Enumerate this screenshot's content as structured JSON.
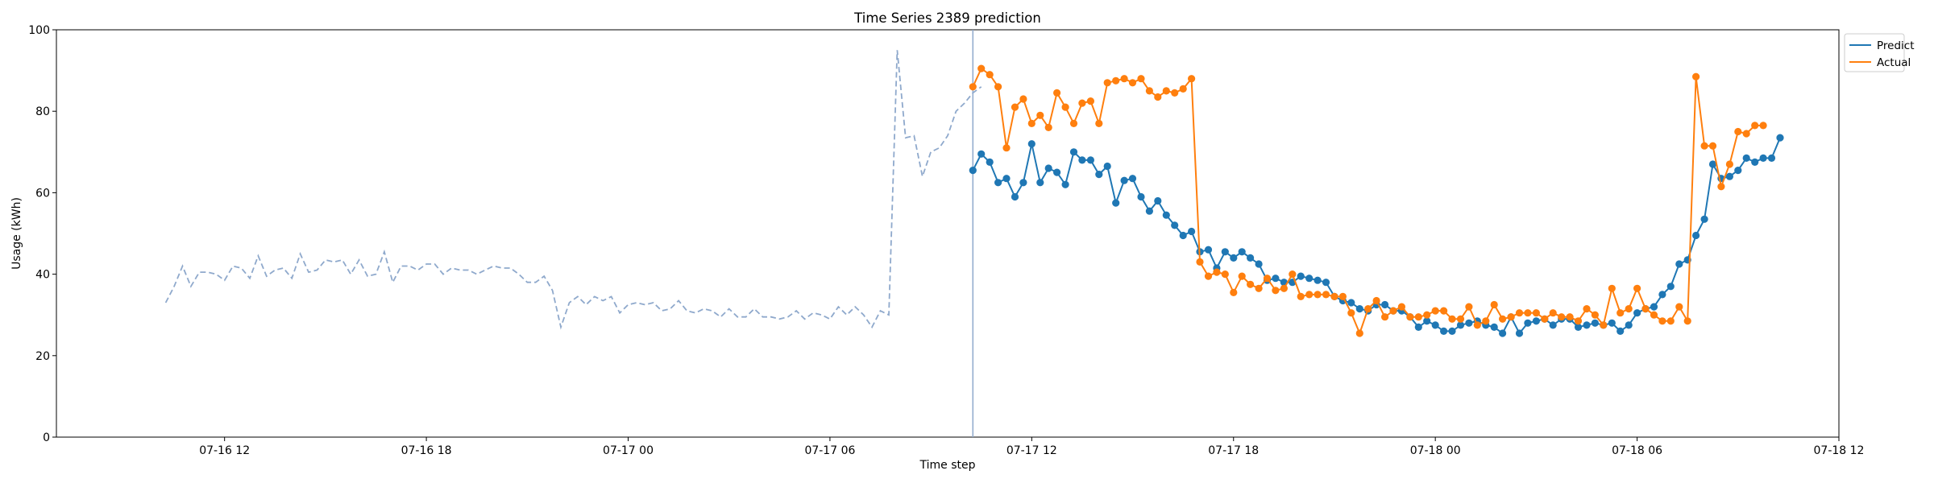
{
  "chart_data": {
    "type": "line",
    "title": "Time Series 2389 prediction",
    "xlabel": "Time step",
    "ylabel": "Usage (kWh)",
    "ylim": [
      0,
      100
    ],
    "xlim": [
      "2024-07-16 07:00",
      "2024-07-18 12:00"
    ],
    "x_ticks": [
      "07-16 12",
      "07-16 18",
      "07-17 00",
      "07-17 06",
      "07-17 12",
      "07-17 18",
      "07-18 00",
      "07-18 06",
      "07-18 12"
    ],
    "y_ticks": [
      0,
      20,
      40,
      60,
      80,
      100
    ],
    "grid": false,
    "legend_position": "top-right",
    "forecast_start": "2024-07-17 10:15",
    "colors": {
      "history": "#8fa9cc",
      "predict": "#1f77b4",
      "actual": "#ff7f0e",
      "forecast_line": "#8fa9cc"
    },
    "history": {
      "start": "2024-07-16 10:15",
      "step_minutes": 15,
      "values": [
        33,
        37,
        42,
        37,
        40.5,
        40.5,
        40,
        38.5,
        42,
        41.5,
        39,
        44.5,
        39.5,
        41,
        41.5,
        39,
        45,
        40.5,
        41,
        43.5,
        43,
        43.5,
        40,
        43.5,
        39.5,
        40,
        45.5,
        38,
        42,
        42,
        41,
        42.5,
        42.5,
        40,
        41.5,
        41,
        41,
        40,
        41,
        42,
        41.5,
        41.5,
        40,
        38,
        38,
        39.5,
        36,
        27,
        33,
        34.5,
        32.5,
        34.5,
        33.5,
        34.5,
        30.5,
        32.5,
        33,
        32.5,
        33,
        31,
        31.5,
        33.5,
        31,
        30.5,
        31.5,
        31,
        29.5,
        31.5,
        29.5,
        29.5,
        31.5,
        29.5,
        29.5,
        29,
        29.5,
        31,
        29,
        30.5,
        30,
        29,
        32,
        30,
        32,
        30,
        27,
        31,
        30,
        95,
        73.5,
        74,
        64,
        70,
        71,
        74,
        80,
        82,
        84.5,
        86
      ]
    },
    "series": [
      {
        "name": "Predict",
        "start": "2024-07-17 10:15",
        "step_minutes": 15,
        "values": [
          65.5,
          69.5,
          67.5,
          62.5,
          63.5,
          59,
          62.5,
          72,
          62.5,
          66,
          65,
          62,
          70,
          68,
          68,
          64.5,
          66.5,
          57.5,
          63,
          63.5,
          59,
          55.5,
          58,
          54.5,
          52,
          49.5,
          50.5,
          45.5,
          46,
          41.5,
          45.5,
          44,
          45.5,
          44,
          42.5,
          38.5,
          39,
          38,
          38,
          39.5,
          39,
          38.5,
          38,
          34.5,
          33.5,
          33,
          31.5,
          31,
          32.5,
          32.5,
          31,
          31,
          29.5,
          27,
          28.5,
          27.5,
          26,
          26,
          27.5,
          28,
          28.5,
          27.5,
          27,
          25.5,
          29.5,
          25.5,
          28,
          28.5,
          29,
          27.5,
          29,
          29,
          27,
          27.5,
          28,
          27.5,
          28,
          26,
          27.5,
          30.5,
          31.5,
          32,
          35,
          37,
          42.5,
          43.5,
          49.5,
          53.5,
          67,
          63.5,
          64,
          65.5,
          68.5,
          67.5,
          68.5,
          68.5,
          73.5
        ]
      },
      {
        "name": "Actual",
        "start": "2024-07-17 10:15",
        "step_minutes": 15,
        "values": [
          86,
          90.5,
          89,
          86,
          71,
          81,
          83,
          77,
          79,
          76,
          84.5,
          81,
          77,
          82,
          82.5,
          77,
          87,
          87.5,
          88,
          87,
          88,
          85,
          83.5,
          85,
          84.5,
          85.5,
          88,
          43,
          39.5,
          40.5,
          40,
          35.5,
          39.5,
          37.5,
          36.5,
          39,
          36,
          36.5,
          40,
          34.5,
          35,
          35,
          35,
          34.5,
          34.5,
          30.5,
          25.5,
          31.5,
          33.5,
          29.5,
          31,
          32,
          29.5,
          29.5,
          30,
          31,
          31,
          29,
          29,
          32,
          27.5,
          28.5,
          32.5,
          29,
          29.5,
          30.5,
          30.5,
          30.5,
          29,
          30.5,
          29.5,
          29.5,
          28.5,
          31.5,
          30,
          27.5,
          36.5,
          30.5,
          31.5,
          36.5,
          31.5,
          30,
          28.5,
          28.5,
          32,
          28.5,
          88.5,
          71.5,
          71.5,
          61.5,
          67,
          75,
          74.5,
          76.5,
          76.5
        ]
      }
    ]
  }
}
